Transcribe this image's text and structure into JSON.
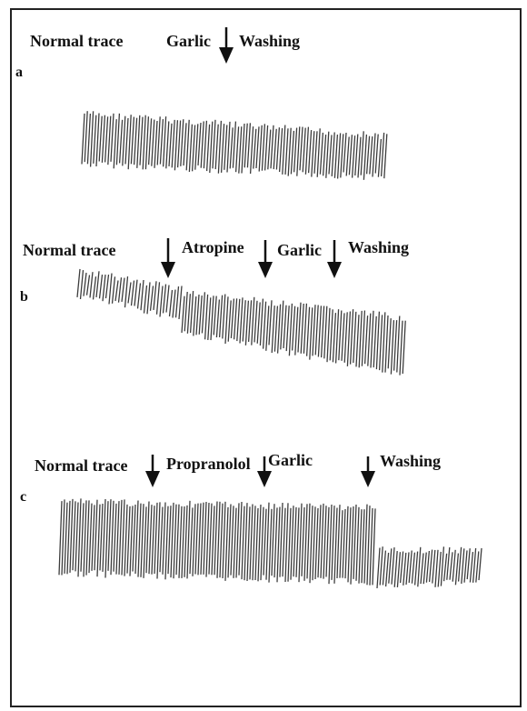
{
  "panels": [
    {
      "letter": "a",
      "labels": [
        "Normal trace",
        "Garlic",
        "Washing"
      ]
    },
    {
      "letter": "b",
      "labels": [
        "Normal trace",
        "Atropine",
        "Garlic",
        "Washing"
      ]
    },
    {
      "letter": "c",
      "labels": [
        "Normal trace",
        "Propranolol",
        "Garlic",
        "Washing"
      ]
    }
  ]
}
